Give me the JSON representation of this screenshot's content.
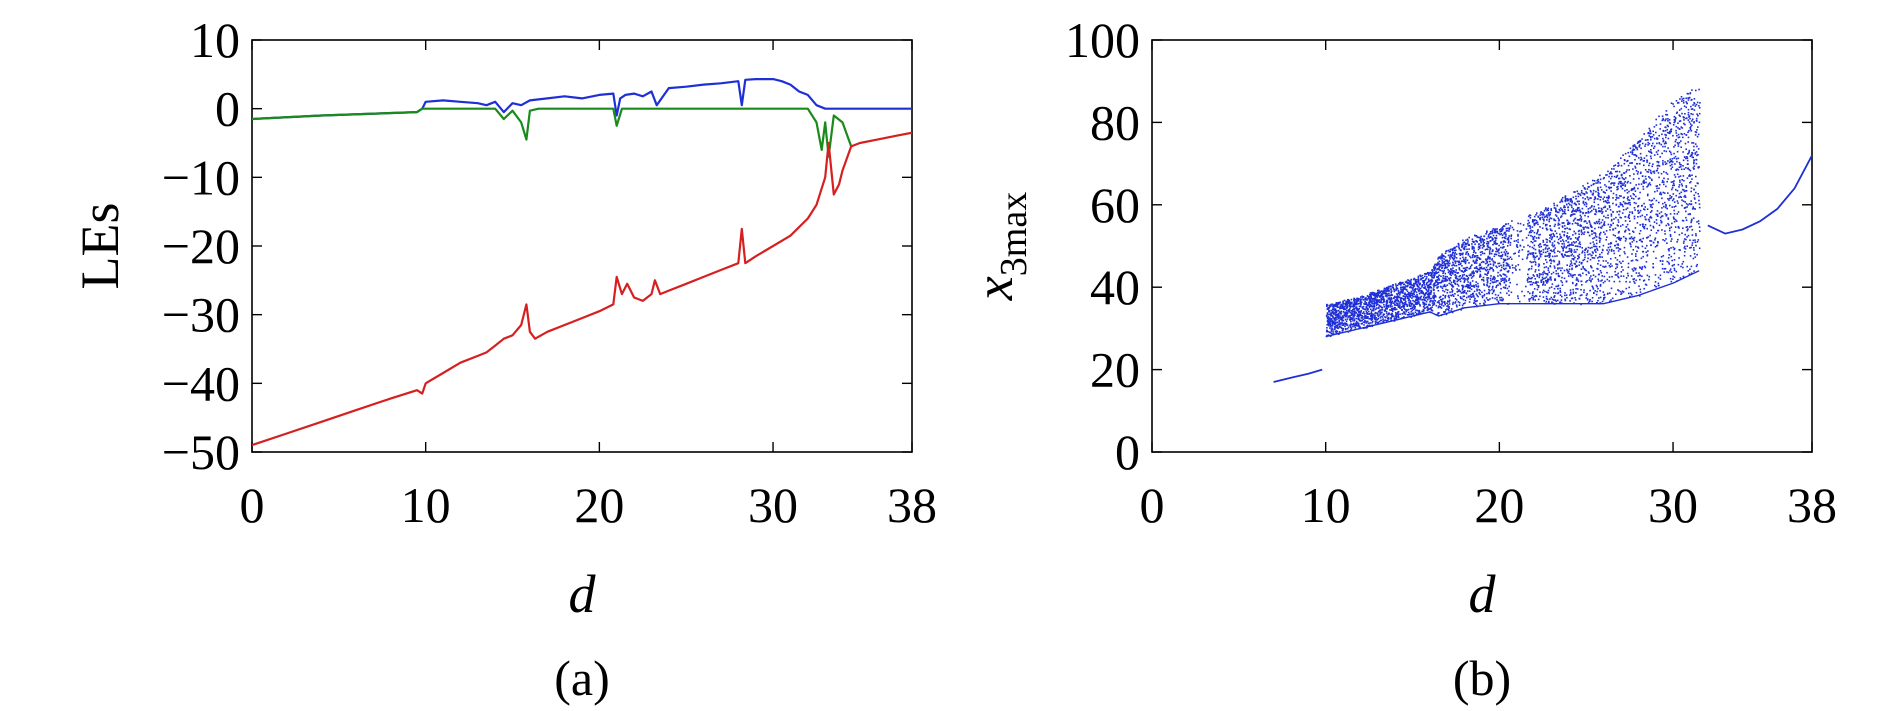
{
  "chart_data": [
    {
      "type": "line",
      "panel_label": "(a)",
      "xlabel": "d",
      "ylabel": "LEs",
      "xlim": [
        0,
        38
      ],
      "ylim": [
        -50,
        10
      ],
      "xticks": [
        0,
        10,
        20,
        30,
        38
      ],
      "yticks": [
        10,
        0,
        -10,
        -20,
        -30,
        -40,
        -50
      ],
      "xtick_labels": [
        "0",
        "10",
        "20",
        "30",
        "38"
      ],
      "ytick_labels": [
        "10",
        "0",
        "−10",
        "−20",
        "−30",
        "−40",
        "−50"
      ],
      "series": [
        {
          "color": "#1f2fd6",
          "x": [
            0,
            4,
            9.5,
            9.8,
            10,
            11,
            12,
            13,
            13.5,
            14,
            14.5,
            15,
            15.5,
            16,
            17,
            18,
            19,
            20,
            20.8,
            21,
            21.2,
            21.5,
            22,
            22.5,
            23,
            23.3,
            24,
            25,
            26,
            27,
            28,
            28.2,
            28.4,
            29,
            30,
            30.5,
            31,
            31.5,
            32,
            32.5,
            33,
            34,
            35,
            36,
            37,
            38
          ],
          "y": [
            -1.5,
            -1,
            -0.5,
            0,
            1,
            1.2,
            1,
            0.8,
            0.5,
            1,
            -0.5,
            0.8,
            0.5,
            1.2,
            1.5,
            1.8,
            1.5,
            2,
            2.2,
            -1,
            1.5,
            2,
            2.2,
            1.8,
            2.5,
            0.5,
            3,
            3.2,
            3.5,
            3.7,
            4,
            0.5,
            4.2,
            4.3,
            4.3,
            4,
            3.5,
            2.5,
            2,
            0.5,
            0,
            0,
            0,
            0,
            0,
            0
          ]
        },
        {
          "color": "#1a8a1a",
          "x": [
            0,
            4,
            9.5,
            9.8,
            10,
            12,
            14,
            14.5,
            15,
            15.5,
            15.8,
            16,
            16.5,
            18,
            20,
            20.8,
            21,
            21.3,
            22,
            24,
            26,
            28,
            30,
            32,
            32.5,
            32.8,
            33,
            33.2,
            33.5,
            34,
            34.5
          ],
          "y": [
            -1.5,
            -1,
            -0.5,
            0,
            0,
            0,
            0,
            -1.5,
            -0.3,
            -2,
            -4.5,
            -0.3,
            0,
            0,
            0,
            0,
            -2.5,
            0,
            0,
            0,
            0,
            0,
            0,
            0,
            -2,
            -6,
            -2,
            -7,
            -1,
            -2,
            -5.5
          ]
        },
        {
          "color": "#d62020",
          "x": [
            0,
            2,
            4,
            6,
            8,
            9.5,
            9.8,
            10,
            11,
            12,
            13,
            13.5,
            14,
            14.5,
            15,
            15.5,
            15.8,
            16,
            16.3,
            17,
            18,
            19,
            20,
            20.8,
            21,
            21.3,
            21.6,
            22,
            22.5,
            23,
            23.2,
            23.5,
            24,
            25,
            26,
            27,
            28,
            28.2,
            28.4,
            29,
            30,
            31,
            32,
            32.5,
            33,
            33.2,
            33.5,
            33.8,
            34,
            34.5,
            35,
            36,
            37,
            38
          ],
          "y": [
            -49,
            -47.3,
            -45.6,
            -43.9,
            -42.2,
            -41,
            -41.5,
            -40,
            -38.5,
            -37,
            -36,
            -35.5,
            -34.5,
            -33.5,
            -33,
            -31.5,
            -28.5,
            -32.5,
            -33.5,
            -32.5,
            -31.5,
            -30.5,
            -29.5,
            -28.5,
            -24.5,
            -27,
            -25.5,
            -27.5,
            -28,
            -27,
            -25,
            -27,
            -26.5,
            -25.5,
            -24.5,
            -23.5,
            -22.5,
            -17.5,
            -22.5,
            -21.5,
            -20,
            -18.5,
            -16,
            -14,
            -10,
            -5,
            -12.5,
            -11,
            -9,
            -5.5,
            -5,
            -4.5,
            -4,
            -3.5
          ]
        }
      ]
    },
    {
      "type": "scatter",
      "panel_label": "(b)",
      "xlabel": "d",
      "ylabel_base": "x",
      "ylabel_sub": "3max",
      "xlim": [
        0,
        38
      ],
      "ylim": [
        0,
        100
      ],
      "xticks": [
        0,
        10,
        20,
        30,
        38
      ],
      "yticks": [
        0,
        20,
        40,
        60,
        80,
        100
      ],
      "xtick_labels": [
        "0",
        "10",
        "20",
        "30",
        "38"
      ],
      "ytick_labels": [
        "0",
        "20",
        "40",
        "60",
        "80",
        "100"
      ],
      "color": "#1f2fd6",
      "periodic_branch": {
        "x": [
          7,
          8,
          9,
          9.8
        ],
        "y": [
          17,
          18,
          19,
          20
        ]
      },
      "upper_branch": {
        "x": [
          32,
          33,
          34,
          35,
          36,
          37,
          38
        ],
        "y": [
          55,
          53,
          54,
          56,
          59,
          64,
          72
        ]
      },
      "chaotic_bands": {
        "x": [
          10,
          12,
          14,
          16,
          16.5,
          18,
          20,
          21,
          22,
          24,
          26,
          28,
          30,
          31.5
        ],
        "y_low": [
          28,
          30,
          32,
          34,
          33,
          35,
          36,
          36,
          36,
          36,
          36,
          38,
          41,
          44
        ],
        "y_high": [
          36,
          38,
          41,
          44,
          48,
          52,
          55,
          57,
          58,
          63,
          68,
          76,
          86,
          89
        ]
      }
    }
  ]
}
